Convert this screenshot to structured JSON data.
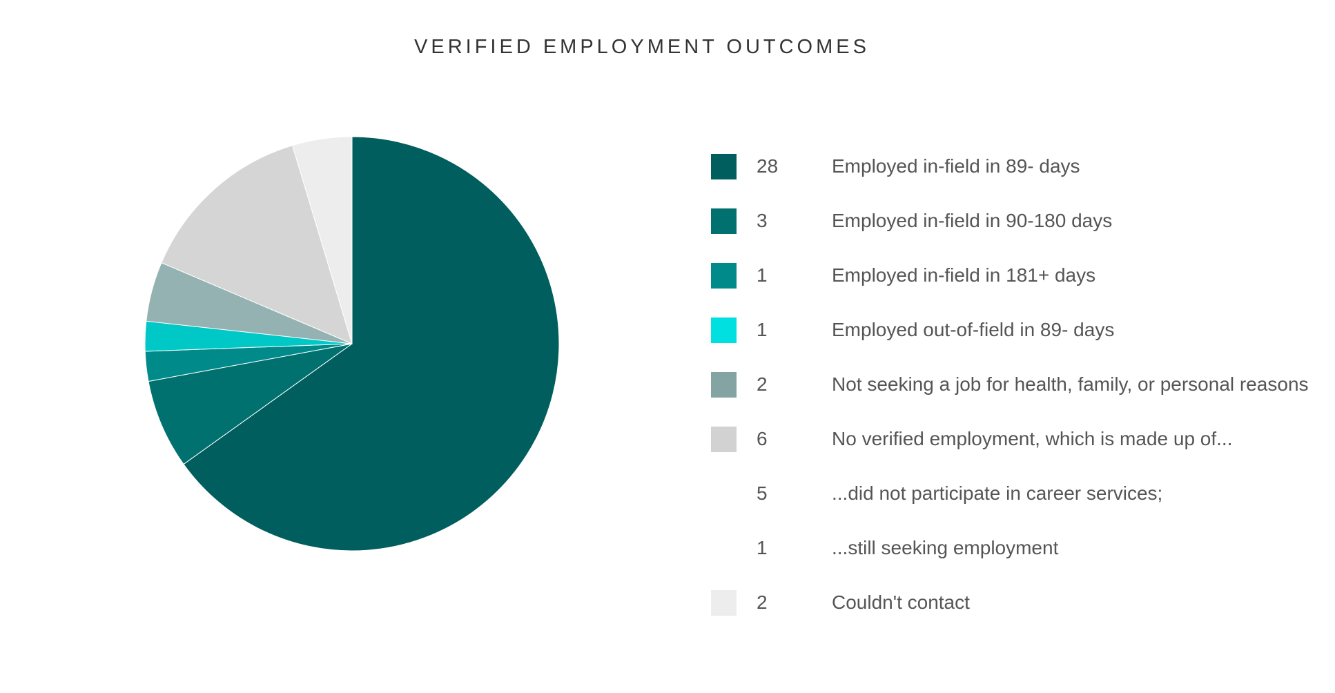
{
  "chart_data": {
    "type": "pie",
    "title": "VERIFIED EMPLOYMENT OUTCOMES",
    "slices": [
      {
        "label": "Employed in-field in 89- days",
        "value": 28,
        "color": "#005e5e"
      },
      {
        "label": "Employed in-field in 90-180 days",
        "value": 3,
        "color": "#00716f"
      },
      {
        "label": "Employed in-field in 181+ days",
        "value": 1,
        "color": "#008b8a"
      },
      {
        "label": "Employed out-of-field in 89- days",
        "value": 1,
        "color": "#00c8c6"
      },
      {
        "label": "Not seeking a job for health, family, or personal reasons",
        "value": 2,
        "color": "#93b2b1"
      },
      {
        "label": "No verified employment, which is made up of...",
        "value": 6,
        "color": "#d5d5d5"
      },
      {
        "label": "Couldn't contact",
        "value": 2,
        "color": "#ededed"
      }
    ],
    "legend": [
      {
        "value": "28",
        "label": "Employed in-field in 89- days",
        "color": "#005e5e"
      },
      {
        "value": "3",
        "label": "Employed in-field in 90-180 days",
        "color": "#00716f"
      },
      {
        "value": "1",
        "label": "Employed in-field in 181+ days",
        "color": "#008b8a"
      },
      {
        "value": "1",
        "label": "Employed out-of-field in 89- days",
        "color": "#00e0e0"
      },
      {
        "value": "2",
        "label": "Not seeking a job for health, family, or personal reasons",
        "color": "#84a3a3"
      },
      {
        "value": "6",
        "label": "No verified employment, which is made up of...",
        "color": "#d2d2d2"
      },
      {
        "value": "5",
        "label": "...did not participate in career services;",
        "color": null
      },
      {
        "value": "1",
        "label": "...still seeking employment",
        "color": null
      },
      {
        "value": "2",
        "label": "Couldn't contact",
        "color": "#ededed"
      }
    ],
    "legend_placement": "right"
  }
}
